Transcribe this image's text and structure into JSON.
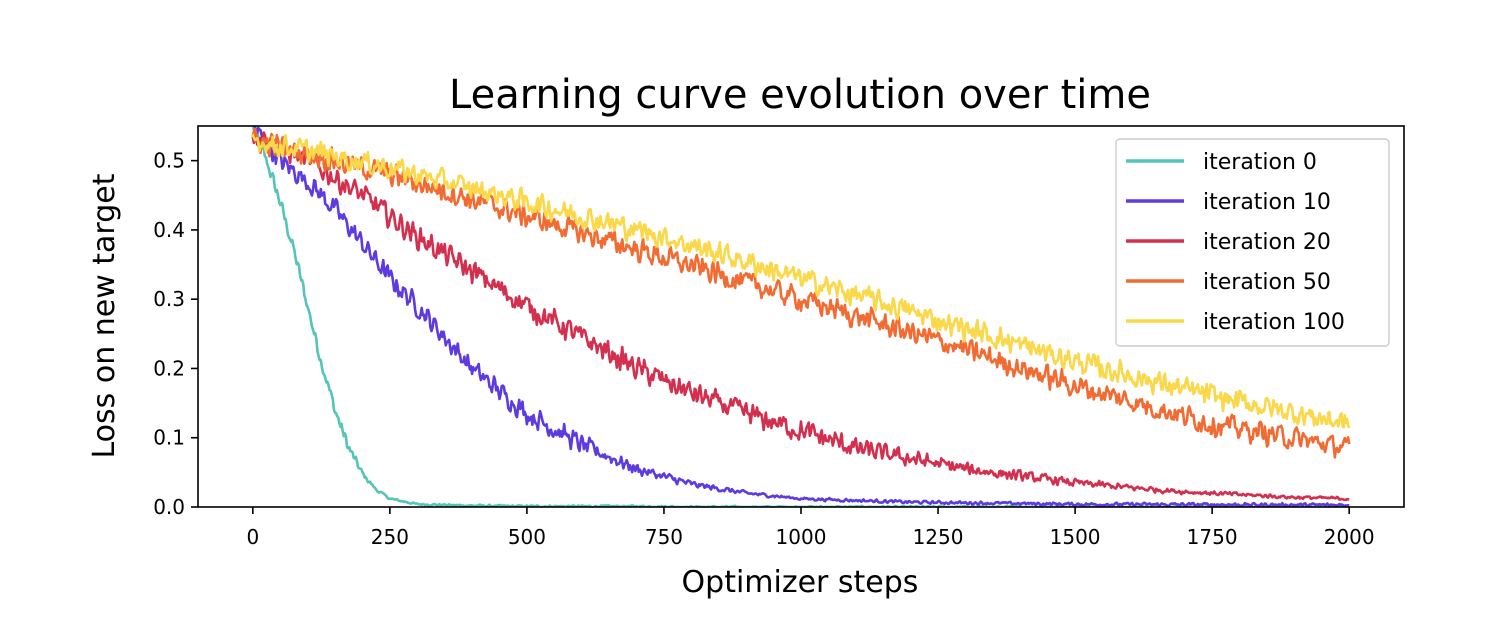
{
  "chart_data": {
    "type": "line",
    "title": "Learning curve evolution over time",
    "xlabel": "Optimizer steps",
    "ylabel": "Loss on new target",
    "xlim": [
      -100,
      2100
    ],
    "ylim": [
      0,
      0.55
    ],
    "xticks": [
      0,
      250,
      500,
      750,
      1000,
      1250,
      1500,
      1750,
      2000
    ],
    "xtick_labels": [
      "0",
      "250",
      "500",
      "750",
      "1000",
      "1250",
      "1500",
      "1750",
      "2000"
    ],
    "yticks": [
      0.0,
      0.1,
      0.2,
      0.3,
      0.4,
      0.5
    ],
    "ytick_labels": [
      "0.0",
      "0.1",
      "0.2",
      "0.3",
      "0.4",
      "0.5"
    ],
    "grid": false,
    "legend_position": "upper right",
    "series": [
      {
        "name": "iteration 0",
        "color": "#55c4b9",
        "noise": 0.012,
        "x": [
          0,
          25,
          50,
          75,
          100,
          125,
          150,
          175,
          200,
          225,
          250,
          300,
          400,
          500,
          600,
          700,
          800,
          1000,
          2000
        ],
        "y": [
          0.55,
          0.5,
          0.44,
          0.37,
          0.29,
          0.21,
          0.14,
          0.085,
          0.048,
          0.025,
          0.012,
          0.004,
          0.002,
          0.001,
          0.001,
          0.001,
          0.0,
          0.0,
          0.0
        ]
      },
      {
        "name": "iteration 10",
        "color": "#5e3be0",
        "noise": 0.018,
        "x": [
          0,
          50,
          100,
          150,
          200,
          250,
          300,
          400,
          500,
          600,
          700,
          800,
          900,
          1000,
          1200,
          1500,
          2000
        ],
        "y": [
          0.55,
          0.5,
          0.47,
          0.43,
          0.38,
          0.33,
          0.29,
          0.2,
          0.135,
          0.09,
          0.055,
          0.033,
          0.02,
          0.012,
          0.007,
          0.004,
          0.003
        ]
      },
      {
        "name": "iteration 20",
        "color": "#d3304f",
        "noise": 0.02,
        "x": [
          0,
          100,
          200,
          300,
          400,
          500,
          600,
          700,
          800,
          900,
          1000,
          1100,
          1200,
          1300,
          1400,
          1500,
          1600,
          1700,
          1800,
          1900,
          2000
        ],
        "y": [
          0.54,
          0.5,
          0.45,
          0.39,
          0.34,
          0.29,
          0.245,
          0.2,
          0.165,
          0.135,
          0.11,
          0.085,
          0.07,
          0.055,
          0.045,
          0.035,
          0.028,
          0.022,
          0.018,
          0.014,
          0.012
        ]
      },
      {
        "name": "iteration 50",
        "color": "#f26b32",
        "noise": 0.02,
        "x": [
          0,
          250,
          500,
          750,
          1000,
          1250,
          1500,
          1750,
          2000
        ],
        "y": [
          0.53,
          0.48,
          0.42,
          0.36,
          0.3,
          0.24,
          0.175,
          0.12,
          0.085
        ]
      },
      {
        "name": "iteration 100",
        "color": "#fad84a",
        "noise": 0.02,
        "x": [
          0,
          250,
          500,
          750,
          1000,
          1250,
          1500,
          1750,
          2000
        ],
        "y": [
          0.53,
          0.49,
          0.44,
          0.39,
          0.33,
          0.27,
          0.21,
          0.16,
          0.12
        ]
      }
    ]
  }
}
